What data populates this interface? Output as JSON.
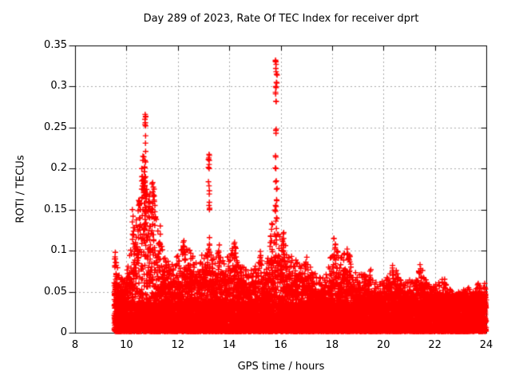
{
  "page": {
    "background": "#ffffff"
  },
  "chart_data": {
    "type": "scatter",
    "title": "Day 289 of 2023, Rate Of TEC Index for receiver dprt",
    "xlabel": "GPS time / hours",
    "ylabel": "ROTI / TECUs",
    "xlim": [
      8,
      24
    ],
    "ylim": [
      0,
      0.35
    ],
    "xticks": [
      8,
      10,
      12,
      14,
      16,
      18,
      20,
      22,
      24
    ],
    "xtick_labels": [
      "8",
      "10",
      "12",
      "14",
      "16",
      "18",
      "20",
      "22",
      "24"
    ],
    "yticks": [
      0,
      0.05,
      0.1,
      0.15,
      0.2,
      0.25,
      0.3,
      0.35
    ],
    "ytick_labels": [
      "0",
      "0.05",
      "0.1",
      "0.15",
      "0.2",
      "0.25",
      "0.3",
      "0.35"
    ],
    "grid": true,
    "grid_style": "dashed",
    "legend": "none",
    "marker": {
      "style": "plus",
      "color": "#ff0000",
      "size": 7
    },
    "grid_color": "#a8a8a8",
    "axis_color": "#000000",
    "data_start_hour": 9.53,
    "data_end_hour": 24.0,
    "baseline_band_max": 0.033,
    "envelope": [
      [
        9.53,
        0.1
      ],
      [
        9.7,
        0.075
      ],
      [
        9.9,
        0.065
      ],
      [
        10.1,
        0.09
      ],
      [
        10.3,
        0.13
      ],
      [
        10.5,
        0.165
      ],
      [
        10.65,
        0.2
      ],
      [
        10.78,
        0.19
      ],
      [
        10.9,
        0.165
      ],
      [
        11.05,
        0.185
      ],
      [
        11.2,
        0.13
      ],
      [
        11.35,
        0.11
      ],
      [
        11.5,
        0.095
      ],
      [
        11.7,
        0.085
      ],
      [
        11.9,
        0.09
      ],
      [
        12.1,
        0.1
      ],
      [
        12.3,
        0.112
      ],
      [
        12.5,
        0.1
      ],
      [
        12.7,
        0.09
      ],
      [
        12.9,
        0.095
      ],
      [
        13.05,
        0.1
      ],
      [
        13.2,
        0.105
      ],
      [
        13.35,
        0.09
      ],
      [
        13.6,
        0.1
      ],
      [
        13.8,
        0.09
      ],
      [
        14.0,
        0.095
      ],
      [
        14.2,
        0.108
      ],
      [
        14.4,
        0.09
      ],
      [
        14.6,
        0.08
      ],
      [
        14.8,
        0.075
      ],
      [
        15.0,
        0.082
      ],
      [
        15.2,
        0.098
      ],
      [
        15.4,
        0.08
      ],
      [
        15.6,
        0.11
      ],
      [
        15.8,
        0.125
      ],
      [
        15.95,
        0.12
      ],
      [
        16.15,
        0.11
      ],
      [
        16.35,
        0.095
      ],
      [
        16.55,
        0.09
      ],
      [
        16.8,
        0.082
      ],
      [
        17.0,
        0.088
      ],
      [
        17.2,
        0.08
      ],
      [
        17.4,
        0.07
      ],
      [
        17.6,
        0.066
      ],
      [
        17.8,
        0.075
      ],
      [
        18.0,
        0.1
      ],
      [
        18.15,
        0.112
      ],
      [
        18.3,
        0.09
      ],
      [
        18.5,
        0.1
      ],
      [
        18.65,
        0.102
      ],
      [
        18.8,
        0.08
      ],
      [
        19.0,
        0.07
      ],
      [
        19.2,
        0.072
      ],
      [
        19.4,
        0.076
      ],
      [
        19.6,
        0.066
      ],
      [
        19.8,
        0.06
      ],
      [
        20.0,
        0.066
      ],
      [
        20.2,
        0.075
      ],
      [
        20.4,
        0.083
      ],
      [
        20.6,
        0.07
      ],
      [
        20.8,
        0.062
      ],
      [
        21.0,
        0.066
      ],
      [
        21.2,
        0.06
      ],
      [
        21.4,
        0.08
      ],
      [
        21.55,
        0.076
      ],
      [
        21.7,
        0.062
      ],
      [
        21.9,
        0.056
      ],
      [
        22.1,
        0.06
      ],
      [
        22.3,
        0.066
      ],
      [
        22.5,
        0.056
      ],
      [
        22.7,
        0.05
      ],
      [
        22.9,
        0.052
      ],
      [
        23.1,
        0.054
      ],
      [
        23.3,
        0.056
      ],
      [
        23.5,
        0.05
      ],
      [
        23.7,
        0.06
      ],
      [
        23.85,
        0.052
      ],
      [
        24.0,
        0.062
      ]
    ],
    "spikes": [
      {
        "hour": 10.73,
        "peak": 0.266,
        "values": [
          0.133,
          0.138,
          0.143,
          0.148,
          0.153,
          0.158,
          0.163,
          0.168,
          0.173,
          0.178,
          0.183,
          0.19,
          0.196,
          0.202,
          0.208,
          0.221,
          0.231,
          0.24,
          0.252,
          0.256,
          0.26,
          0.263,
          0.266
        ]
      },
      {
        "hour": 13.21,
        "peak": 0.216,
        "values": [
          0.1,
          0.108,
          0.116,
          0.15,
          0.155,
          0.159,
          0.169,
          0.173,
          0.179,
          0.184,
          0.2,
          0.205,
          0.21,
          0.213,
          0.216
        ]
      },
      {
        "hour": 15.82,
        "peak": 0.332,
        "values": [
          0.113,
          0.118,
          0.127,
          0.136,
          0.14,
          0.148,
          0.155,
          0.162,
          0.175,
          0.184,
          0.2,
          0.214,
          0.243,
          0.248,
          0.282,
          0.293,
          0.3,
          0.305,
          0.315,
          0.318,
          0.322,
          0.327,
          0.33,
          0.332
        ]
      }
    ],
    "clusters": [
      {
        "hour": 9.57,
        "values": [
          0.055,
          0.065,
          0.072,
          0.08,
          0.09,
          0.098
        ]
      },
      {
        "hour": 10.25,
        "values": [
          0.12,
          0.128,
          0.135,
          0.142,
          0.15
        ]
      },
      {
        "hour": 10.5,
        "values": [
          0.13,
          0.14,
          0.15,
          0.155,
          0.16
        ]
      },
      {
        "hour": 10.62,
        "values": [
          0.165,
          0.175,
          0.185,
          0.19,
          0.2,
          0.21,
          0.215
        ]
      },
      {
        "hour": 10.9,
        "values": [
          0.13,
          0.14,
          0.15,
          0.16,
          0.17
        ]
      },
      {
        "hour": 11.05,
        "values": [
          0.15,
          0.16,
          0.168,
          0.175,
          0.183
        ]
      },
      {
        "hour": 11.3,
        "values": [
          0.1,
          0.11,
          0.12,
          0.13
        ]
      },
      {
        "hour": 12.25,
        "values": [
          0.09,
          0.098,
          0.105,
          0.112
        ]
      },
      {
        "hour": 13.6,
        "values": [
          0.085,
          0.092,
          0.1,
          0.107
        ]
      },
      {
        "hour": 14.2,
        "values": [
          0.09,
          0.097,
          0.104,
          0.11
        ]
      },
      {
        "hour": 15.2,
        "values": [
          0.085,
          0.092,
          0.099
        ]
      },
      {
        "hour": 15.65,
        "values": [
          0.11,
          0.118,
          0.126,
          0.133
        ]
      },
      {
        "hour": 16.1,
        "values": [
          0.1,
          0.108,
          0.115,
          0.122
        ]
      },
      {
        "hour": 17.0,
        "values": [
          0.08,
          0.086,
          0.092
        ]
      },
      {
        "hour": 18.1,
        "values": [
          0.095,
          0.102,
          0.108,
          0.115
        ]
      },
      {
        "hour": 18.6,
        "values": [
          0.09,
          0.096,
          0.102
        ]
      },
      {
        "hour": 19.45,
        "values": [
          0.065,
          0.07,
          0.075
        ]
      },
      {
        "hour": 20.35,
        "values": [
          0.07,
          0.076,
          0.082
        ]
      },
      {
        "hour": 21.45,
        "values": [
          0.068,
          0.073,
          0.078,
          0.083
        ]
      },
      {
        "hour": 22.35,
        "values": [
          0.055,
          0.06,
          0.065
        ]
      },
      {
        "hour": 23.7,
        "values": [
          0.05,
          0.055,
          0.06
        ]
      },
      {
        "hour": 23.97,
        "values": [
          0.04,
          0.045,
          0.05,
          0.055,
          0.06
        ]
      }
    ]
  }
}
